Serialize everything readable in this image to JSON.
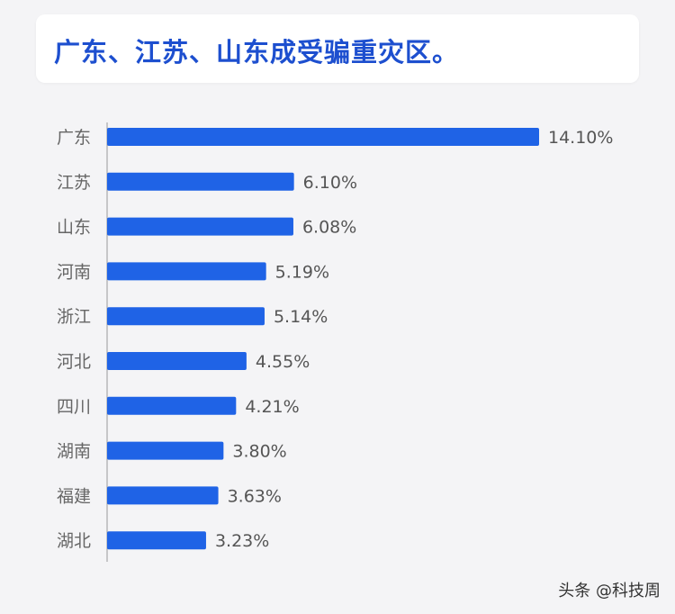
{
  "title": "广东、江苏、山东成受骗重灾区。",
  "watermark": "头条 @科技周",
  "colors": {
    "bar": "#1f63e6",
    "title": "#1d4fcf",
    "label": "#666666",
    "value": "#555555",
    "axis": "#999999"
  },
  "chart_data": {
    "type": "bar",
    "orientation": "horizontal",
    "categories": [
      "广东",
      "江苏",
      "山东",
      "河南",
      "浙江",
      "河北",
      "四川",
      "湖南",
      "福建",
      "湖北"
    ],
    "values": [
      14.1,
      6.1,
      6.08,
      5.19,
      5.14,
      4.55,
      4.21,
      3.8,
      3.63,
      3.23
    ],
    "value_labels": [
      "14.10%",
      "6.10%",
      "6.08%",
      "5.19%",
      "5.14%",
      "4.55%",
      "4.21%",
      "3.80%",
      "3.63%",
      "3.23%"
    ],
    "unit": "%",
    "title": "广东、江苏、山东成受骗重灾区。",
    "grid": false,
    "legend": "none"
  }
}
